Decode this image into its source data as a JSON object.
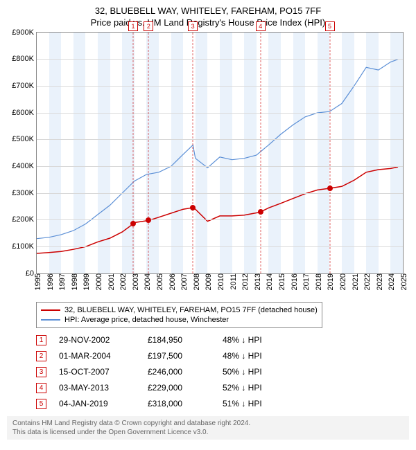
{
  "title_line1": "32, BLUEBELL WAY, WHITELEY, FAREHAM, PO15 7FF",
  "title_line2": "Price paid vs. HM Land Registry's House Price Index (HPI)",
  "chart": {
    "type": "line",
    "x_min": 1995,
    "x_max": 2025,
    "y_min": 0,
    "y_max": 900000,
    "y_ticks": [
      0,
      100000,
      200000,
      300000,
      400000,
      500000,
      600000,
      700000,
      800000,
      900000
    ],
    "y_tick_labels": [
      "£0",
      "£100K",
      "£200K",
      "£300K",
      "£400K",
      "£500K",
      "£600K",
      "£700K",
      "£800K",
      "£900K"
    ],
    "x_ticks": [
      1995,
      1996,
      1997,
      1998,
      1999,
      2000,
      2001,
      2002,
      2003,
      2004,
      2005,
      2006,
      2007,
      2008,
      2009,
      2010,
      2011,
      2012,
      2013,
      2014,
      2015,
      2016,
      2017,
      2018,
      2019,
      2020,
      2021,
      2022,
      2023,
      2024,
      2025
    ],
    "grid_color": "#d9d9d9",
    "band_color": "#eaf2fb",
    "background_color": "#ffffff",
    "series": [
      {
        "name": "property_price",
        "label": "32, BLUEBELL WAY, WHITELEY, FAREHAM, PO15 7FF (detached house)",
        "color": "#cc0000",
        "line_width": 1.5,
        "data": [
          [
            1995,
            75000
          ],
          [
            1996,
            78000
          ],
          [
            1997,
            82000
          ],
          [
            1998,
            90000
          ],
          [
            1999,
            100000
          ],
          [
            2000,
            118000
          ],
          [
            2001,
            132000
          ],
          [
            2002,
            155000
          ],
          [
            2002.9,
            185000
          ],
          [
            2003,
            190000
          ],
          [
            2004.2,
            198000
          ],
          [
            2005,
            210000
          ],
          [
            2006,
            225000
          ],
          [
            2007,
            240000
          ],
          [
            2007.8,
            246000
          ],
          [
            2008,
            240000
          ],
          [
            2009,
            195000
          ],
          [
            2010,
            215000
          ],
          [
            2011,
            215000
          ],
          [
            2012,
            218000
          ],
          [
            2013.3,
            229000
          ],
          [
            2014,
            245000
          ],
          [
            2015,
            262000
          ],
          [
            2016,
            280000
          ],
          [
            2017,
            298000
          ],
          [
            2018,
            312000
          ],
          [
            2019,
            318000
          ],
          [
            2020,
            325000
          ],
          [
            2021,
            348000
          ],
          [
            2022,
            378000
          ],
          [
            2023,
            388000
          ],
          [
            2024,
            392000
          ],
          [
            2024.6,
            398000
          ]
        ]
      },
      {
        "name": "hpi",
        "label": "HPI: Average price, detached house, Winchester",
        "color": "#5b8fd6",
        "line_width": 1.2,
        "data": [
          [
            1995,
            130000
          ],
          [
            1996,
            135000
          ],
          [
            1997,
            145000
          ],
          [
            1998,
            160000
          ],
          [
            1999,
            185000
          ],
          [
            2000,
            220000
          ],
          [
            2001,
            255000
          ],
          [
            2002,
            300000
          ],
          [
            2003,
            345000
          ],
          [
            2004,
            370000
          ],
          [
            2005,
            378000
          ],
          [
            2006,
            400000
          ],
          [
            2007,
            445000
          ],
          [
            2007.8,
            480000
          ],
          [
            2008,
            430000
          ],
          [
            2009,
            395000
          ],
          [
            2010,
            435000
          ],
          [
            2011,
            425000
          ],
          [
            2012,
            430000
          ],
          [
            2013,
            442000
          ],
          [
            2014,
            480000
          ],
          [
            2015,
            520000
          ],
          [
            2016,
            555000
          ],
          [
            2017,
            585000
          ],
          [
            2018,
            600000
          ],
          [
            2019,
            605000
          ],
          [
            2020,
            635000
          ],
          [
            2021,
            700000
          ],
          [
            2022,
            770000
          ],
          [
            2023,
            760000
          ],
          [
            2024,
            790000
          ],
          [
            2024.6,
            800000
          ]
        ]
      }
    ],
    "markers": [
      {
        "num": "1",
        "x": 2002.9,
        "y": 184950
      },
      {
        "num": "2",
        "x": 2004.17,
        "y": 197500
      },
      {
        "num": "3",
        "x": 2007.79,
        "y": 246000
      },
      {
        "num": "4",
        "x": 2013.34,
        "y": 229000
      },
      {
        "num": "5",
        "x": 2019.01,
        "y": 318000
      }
    ],
    "dot_color": "#cc0000"
  },
  "legend": {
    "rows": [
      {
        "color": "#cc0000",
        "label": "32, BLUEBELL WAY, WHITELEY, FAREHAM, PO15 7FF (detached house)"
      },
      {
        "color": "#5b8fd6",
        "label": "HPI: Average price, detached house, Winchester"
      }
    ]
  },
  "events": [
    {
      "num": "1",
      "date": "29-NOV-2002",
      "price": "£184,950",
      "pct": "48% ↓ HPI"
    },
    {
      "num": "2",
      "date": "01-MAR-2004",
      "price": "£197,500",
      "pct": "48% ↓ HPI"
    },
    {
      "num": "3",
      "date": "15-OCT-2007",
      "price": "£246,000",
      "pct": "50% ↓ HPI"
    },
    {
      "num": "4",
      "date": "03-MAY-2013",
      "price": "£229,000",
      "pct": "52% ↓ HPI"
    },
    {
      "num": "5",
      "date": "04-JAN-2019",
      "price": "£318,000",
      "pct": "51% ↓ HPI"
    }
  ],
  "footer_line1": "Contains HM Land Registry data © Crown copyright and database right 2024.",
  "footer_line2": "This data is licensed under the Open Government Licence v3.0."
}
